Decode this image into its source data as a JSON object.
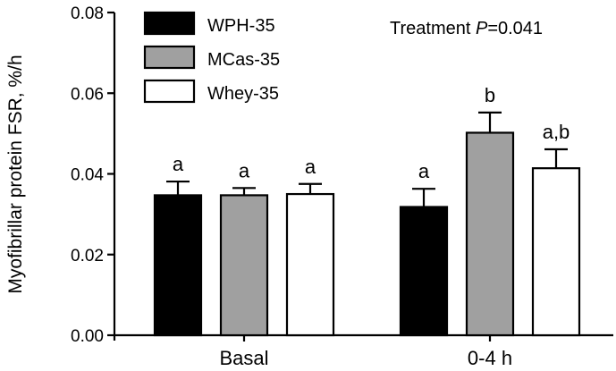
{
  "chart_data": {
    "type": "bar",
    "categories": [
      "Basal",
      "0-4 h"
    ],
    "ylabel": "Myofibrillar protein FSR, %/h",
    "xlabel": "",
    "ylim": [
      0,
      0.08
    ],
    "yticks": [
      "0.00",
      "0.02",
      "0.04",
      "0.06",
      "0.08"
    ],
    "grid": false,
    "legend_position": "top-left",
    "annotation": {
      "prefix": "Treatment ",
      "italic": "P",
      "suffix": "=0.041"
    },
    "series": [
      {
        "name": "WPH-35",
        "color": "#000000",
        "values": [
          0.0347,
          0.0318
        ],
        "errors": [
          0.0034,
          0.0045
        ],
        "significance": [
          "a",
          "a"
        ]
      },
      {
        "name": "MCas-35",
        "color": "#a0a0a0",
        "values": [
          0.0347,
          0.0502
        ],
        "errors": [
          0.0018,
          0.005
        ],
        "significance": [
          "a",
          "b"
        ]
      },
      {
        "name": "Whey-35",
        "color": "#ffffff",
        "values": [
          0.035,
          0.0414
        ],
        "errors": [
          0.0025,
          0.0047
        ],
        "significance": [
          "a",
          "a,b"
        ]
      }
    ]
  }
}
